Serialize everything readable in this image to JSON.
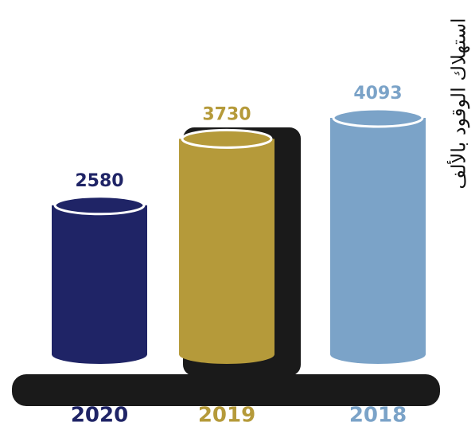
{
  "chart_data": {
    "type": "bar",
    "title": "استهلاك الوقود بالألف",
    "categories": [
      "2020",
      "2019",
      "2018"
    ],
    "values": [
      2580,
      3730,
      4093
    ],
    "colors": [
      "#1f2466",
      "#b59a3a",
      "#7ba3c8"
    ]
  }
}
